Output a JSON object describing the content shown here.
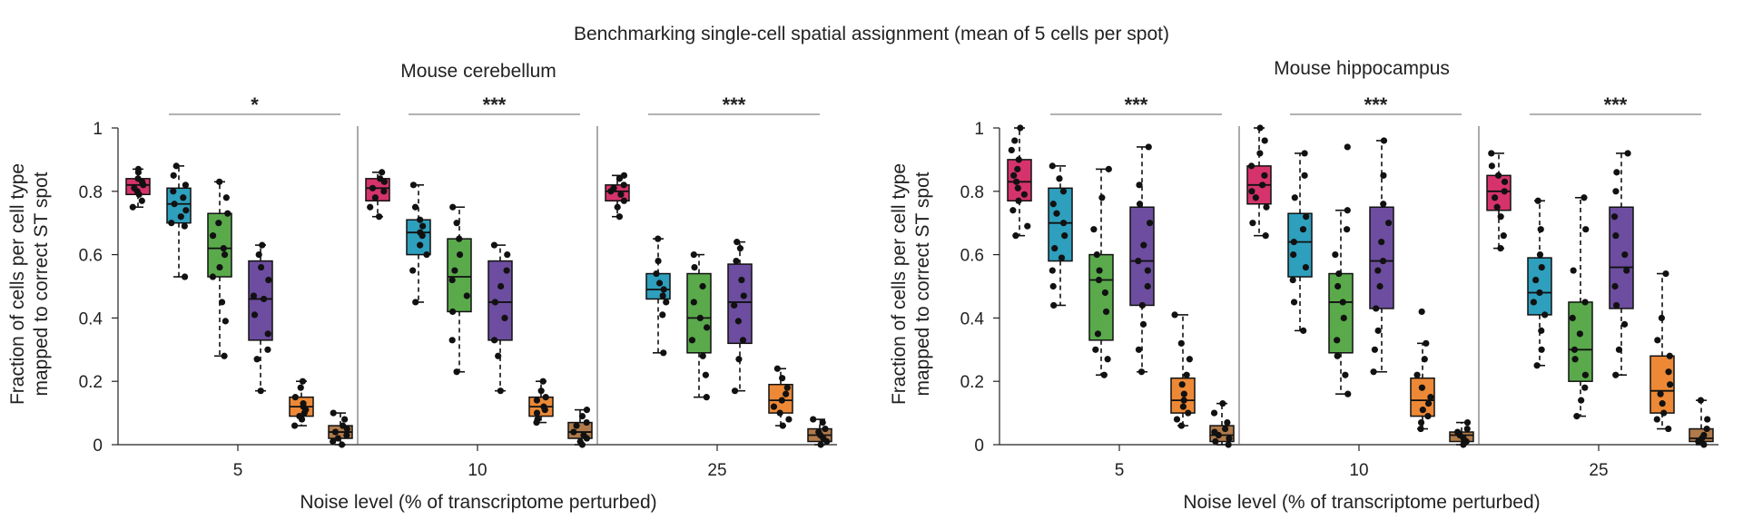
{
  "title": "Benchmarking single-cell spatial assignment (mean of 5 cells per spot)",
  "colors": {
    "method_1": "#d6336c",
    "method_2": "#2e9fbd",
    "method_3": "#5aaa4c",
    "method_4": "#6d4d9f",
    "method_5": "#ed8936",
    "method_6": "#b07a4a",
    "sig_line": "#999999",
    "axis": "#222222"
  },
  "chart_data": [
    {
      "type": "box",
      "title": "Mouse cerebellum",
      "ylabel_lines": [
        "Fraction of cells per cell type",
        "mapped to correct ST spot"
      ],
      "xlabel": "Noise level (% of transcriptome perturbed)",
      "ylim": [
        0,
        1
      ],
      "yticks": [
        0,
        0.2,
        0.4,
        0.6,
        0.8,
        1
      ],
      "ytick_labels": [
        "0",
        "0.2",
        "0.4",
        "0.6",
        "0.8",
        "1"
      ],
      "groups": [
        {
          "label": "5",
          "significance": "*",
          "boxes": [
            {
              "color_key": "method_1",
              "q1": 0.79,
              "median": 0.82,
              "q3": 0.84,
              "whisker_low": 0.75,
              "whisker_high": 0.87,
              "points": [
                0.75,
                0.77,
                0.79,
                0.8,
                0.81,
                0.82,
                0.83,
                0.84,
                0.86,
                0.87
              ]
            },
            {
              "color_key": "method_2",
              "q1": 0.7,
              "median": 0.76,
              "q3": 0.81,
              "whisker_low": 0.53,
              "whisker_high": 0.88,
              "points": [
                0.53,
                0.69,
                0.7,
                0.72,
                0.74,
                0.76,
                0.78,
                0.8,
                0.82,
                0.85,
                0.88
              ]
            },
            {
              "color_key": "method_3",
              "q1": 0.53,
              "median": 0.62,
              "q3": 0.73,
              "whisker_low": 0.28,
              "whisker_high": 0.83,
              "points": [
                0.28,
                0.39,
                0.45,
                0.53,
                0.56,
                0.6,
                0.62,
                0.66,
                0.7,
                0.73,
                0.78,
                0.83
              ]
            },
            {
              "color_key": "method_4",
              "q1": 0.33,
              "median": 0.46,
              "q3": 0.58,
              "whisker_low": 0.17,
              "whisker_high": 0.63,
              "points": [
                0.17,
                0.27,
                0.3,
                0.35,
                0.41,
                0.46,
                0.47,
                0.52,
                0.56,
                0.6,
                0.63
              ]
            },
            {
              "color_key": "method_5",
              "q1": 0.09,
              "median": 0.12,
              "q3": 0.15,
              "whisker_low": 0.06,
              "whisker_high": 0.2,
              "points": [
                0.06,
                0.08,
                0.09,
                0.1,
                0.11,
                0.12,
                0.13,
                0.15,
                0.18,
                0.2
              ]
            },
            {
              "color_key": "method_6",
              "q1": 0.02,
              "median": 0.04,
              "q3": 0.06,
              "whisker_low": 0.0,
              "whisker_high": 0.1,
              "points": [
                0.0,
                0.01,
                0.02,
                0.03,
                0.04,
                0.05,
                0.06,
                0.08,
                0.1
              ]
            }
          ]
        },
        {
          "label": "10",
          "significance": "***",
          "boxes": [
            {
              "color_key": "method_1",
              "q1": 0.77,
              "median": 0.81,
              "q3": 0.84,
              "whisker_low": 0.72,
              "whisker_high": 0.86,
              "points": [
                0.72,
                0.75,
                0.78,
                0.8,
                0.81,
                0.83,
                0.84,
                0.86
              ]
            },
            {
              "color_key": "method_2",
              "q1": 0.6,
              "median": 0.67,
              "q3": 0.71,
              "whisker_low": 0.45,
              "whisker_high": 0.82,
              "points": [
                0.45,
                0.55,
                0.6,
                0.63,
                0.66,
                0.67,
                0.69,
                0.71,
                0.75,
                0.82
              ]
            },
            {
              "color_key": "method_3",
              "q1": 0.42,
              "median": 0.53,
              "q3": 0.65,
              "whisker_low": 0.23,
              "whisker_high": 0.75,
              "points": [
                0.23,
                0.33,
                0.42,
                0.47,
                0.52,
                0.55,
                0.6,
                0.65,
                0.7,
                0.75
              ]
            },
            {
              "color_key": "method_4",
              "q1": 0.33,
              "median": 0.45,
              "q3": 0.58,
              "whisker_low": 0.17,
              "whisker_high": 0.63,
              "points": [
                0.17,
                0.28,
                0.33,
                0.4,
                0.45,
                0.5,
                0.55,
                0.6,
                0.63
              ]
            },
            {
              "color_key": "method_5",
              "q1": 0.09,
              "median": 0.12,
              "q3": 0.15,
              "whisker_low": 0.07,
              "whisker_high": 0.2,
              "points": [
                0.07,
                0.08,
                0.1,
                0.11,
                0.12,
                0.14,
                0.15,
                0.17,
                0.2
              ]
            },
            {
              "color_key": "method_6",
              "q1": 0.02,
              "median": 0.04,
              "q3": 0.07,
              "whisker_low": 0.0,
              "whisker_high": 0.11,
              "points": [
                0.0,
                0.01,
                0.02,
                0.03,
                0.04,
                0.06,
                0.07,
                0.09,
                0.11
              ]
            }
          ]
        },
        {
          "label": "25",
          "significance": "***",
          "boxes": [
            {
              "color_key": "method_1",
              "q1": 0.77,
              "median": 0.8,
              "q3": 0.82,
              "whisker_low": 0.72,
              "whisker_high": 0.85,
              "points": [
                0.72,
                0.75,
                0.77,
                0.79,
                0.8,
                0.81,
                0.82,
                0.84,
                0.85
              ]
            },
            {
              "color_key": "method_2",
              "q1": 0.46,
              "median": 0.49,
              "q3": 0.54,
              "whisker_low": 0.29,
              "whisker_high": 0.65,
              "points": [
                0.29,
                0.41,
                0.45,
                0.47,
                0.49,
                0.51,
                0.54,
                0.58,
                0.65
              ]
            },
            {
              "color_key": "method_3",
              "q1": 0.29,
              "median": 0.4,
              "q3": 0.54,
              "whisker_low": 0.15,
              "whisker_high": 0.6,
              "points": [
                0.15,
                0.22,
                0.28,
                0.33,
                0.37,
                0.4,
                0.45,
                0.5,
                0.56,
                0.6
              ]
            },
            {
              "color_key": "method_4",
              "q1": 0.32,
              "median": 0.45,
              "q3": 0.57,
              "whisker_low": 0.17,
              "whisker_high": 0.64,
              "points": [
                0.17,
                0.27,
                0.33,
                0.39,
                0.44,
                0.47,
                0.52,
                0.58,
                0.62,
                0.64
              ]
            },
            {
              "color_key": "method_5",
              "q1": 0.1,
              "median": 0.14,
              "q3": 0.19,
              "whisker_low": 0.06,
              "whisker_high": 0.24,
              "points": [
                0.06,
                0.08,
                0.1,
                0.12,
                0.14,
                0.16,
                0.18,
                0.21,
                0.24
              ]
            },
            {
              "color_key": "method_6",
              "q1": 0.01,
              "median": 0.03,
              "q3": 0.05,
              "whisker_low": 0.0,
              "whisker_high": 0.08,
              "points": [
                0.0,
                0.01,
                0.02,
                0.03,
                0.04,
                0.05,
                0.07,
                0.08
              ]
            }
          ]
        }
      ]
    },
    {
      "type": "box",
      "title": "Mouse hippocampus",
      "ylabel_lines": [
        "Fraction of cells per cell type",
        "mapped to correct ST spot"
      ],
      "xlabel": "Noise level (% of transcriptome perturbed)",
      "ylim": [
        0,
        1
      ],
      "yticks": [
        0,
        0.2,
        0.4,
        0.6,
        0.8,
        1
      ],
      "ytick_labels": [
        "0",
        "0.2",
        "0.4",
        "0.6",
        "0.8",
        "1"
      ],
      "groups": [
        {
          "label": "5",
          "significance": "***",
          "boxes": [
            {
              "color_key": "method_1",
              "q1": 0.77,
              "median": 0.83,
              "q3": 0.9,
              "whisker_low": 0.66,
              "whisker_high": 1.0,
              "points": [
                0.66,
                0.69,
                0.74,
                0.77,
                0.79,
                0.81,
                0.83,
                0.85,
                0.87,
                0.9,
                0.93,
                0.96,
                1.0
              ]
            },
            {
              "color_key": "method_2",
              "q1": 0.58,
              "median": 0.7,
              "q3": 0.81,
              "whisker_low": 0.44,
              "whisker_high": 0.88,
              "points": [
                0.44,
                0.5,
                0.55,
                0.59,
                0.62,
                0.66,
                0.7,
                0.73,
                0.76,
                0.8,
                0.84,
                0.88
              ]
            },
            {
              "color_key": "method_3",
              "q1": 0.33,
              "median": 0.52,
              "q3": 0.6,
              "whisker_low": 0.22,
              "whisker_high": 0.87,
              "points": [
                0.22,
                0.27,
                0.3,
                0.35,
                0.42,
                0.48,
                0.52,
                0.55,
                0.6,
                0.68,
                0.78,
                0.87
              ]
            },
            {
              "color_key": "method_4",
              "q1": 0.44,
              "median": 0.58,
              "q3": 0.75,
              "whisker_low": 0.23,
              "whisker_high": 0.94,
              "points": [
                0.23,
                0.3,
                0.38,
                0.44,
                0.5,
                0.55,
                0.58,
                0.63,
                0.7,
                0.76,
                0.82,
                0.94
              ]
            },
            {
              "color_key": "method_5",
              "q1": 0.1,
              "median": 0.14,
              "q3": 0.21,
              "whisker_low": 0.06,
              "whisker_high": 0.41,
              "points": [
                0.06,
                0.08,
                0.1,
                0.12,
                0.14,
                0.16,
                0.19,
                0.22,
                0.27,
                0.32,
                0.41
              ]
            },
            {
              "color_key": "method_6",
              "q1": 0.01,
              "median": 0.03,
              "q3": 0.06,
              "whisker_low": 0.0,
              "whisker_high": 0.13,
              "points": [
                0.0,
                0.01,
                0.02,
                0.03,
                0.04,
                0.05,
                0.07,
                0.1,
                0.13
              ]
            }
          ]
        },
        {
          "label": "10",
          "significance": "***",
          "boxes": [
            {
              "color_key": "method_1",
              "q1": 0.76,
              "median": 0.82,
              "q3": 0.88,
              "whisker_low": 0.66,
              "whisker_high": 1.0,
              "points": [
                0.66,
                0.7,
                0.75,
                0.78,
                0.8,
                0.82,
                0.85,
                0.88,
                0.92,
                0.96,
                1.0
              ]
            },
            {
              "color_key": "method_2",
              "q1": 0.53,
              "median": 0.64,
              "q3": 0.73,
              "whisker_low": 0.36,
              "whisker_high": 0.92,
              "points": [
                0.36,
                0.45,
                0.52,
                0.56,
                0.6,
                0.64,
                0.68,
                0.72,
                0.78,
                0.85,
                0.92
              ]
            },
            {
              "color_key": "method_3",
              "q1": 0.29,
              "median": 0.45,
              "q3": 0.54,
              "whisker_low": 0.16,
              "whisker_high": 0.74,
              "points": [
                0.16,
                0.22,
                0.28,
                0.33,
                0.4,
                0.45,
                0.5,
                0.54,
                0.6,
                0.68,
                0.74,
                0.94
              ]
            },
            {
              "color_key": "method_4",
              "q1": 0.43,
              "median": 0.58,
              "q3": 0.75,
              "whisker_low": 0.23,
              "whisker_high": 0.96,
              "points": [
                0.23,
                0.3,
                0.36,
                0.43,
                0.5,
                0.55,
                0.58,
                0.64,
                0.7,
                0.76,
                0.85,
                0.96
              ]
            },
            {
              "color_key": "method_5",
              "q1": 0.09,
              "median": 0.14,
              "q3": 0.21,
              "whisker_low": 0.05,
              "whisker_high": 0.32,
              "points": [
                0.05,
                0.07,
                0.09,
                0.11,
                0.13,
                0.15,
                0.18,
                0.22,
                0.27,
                0.32,
                0.42
              ]
            },
            {
              "color_key": "method_6",
              "q1": 0.01,
              "median": 0.03,
              "q3": 0.04,
              "whisker_low": 0.0,
              "whisker_high": 0.07,
              "points": [
                0.0,
                0.01,
                0.02,
                0.03,
                0.04,
                0.05,
                0.07
              ]
            }
          ]
        },
        {
          "label": "25",
          "significance": "***",
          "boxes": [
            {
              "color_key": "method_1",
              "q1": 0.74,
              "median": 0.8,
              "q3": 0.85,
              "whisker_low": 0.62,
              "whisker_high": 0.92,
              "points": [
                0.62,
                0.66,
                0.72,
                0.75,
                0.78,
                0.8,
                0.83,
                0.85,
                0.88,
                0.92
              ]
            },
            {
              "color_key": "method_2",
              "q1": 0.41,
              "median": 0.48,
              "q3": 0.59,
              "whisker_low": 0.25,
              "whisker_high": 0.77,
              "points": [
                0.25,
                0.3,
                0.36,
                0.41,
                0.45,
                0.48,
                0.52,
                0.56,
                0.6,
                0.68,
                0.77
              ]
            },
            {
              "color_key": "method_3",
              "q1": 0.2,
              "median": 0.3,
              "q3": 0.45,
              "whisker_low": 0.09,
              "whisker_high": 0.78,
              "points": [
                0.09,
                0.14,
                0.18,
                0.22,
                0.27,
                0.3,
                0.35,
                0.4,
                0.45,
                0.55,
                0.68,
                0.78
              ]
            },
            {
              "color_key": "method_4",
              "q1": 0.43,
              "median": 0.56,
              "q3": 0.75,
              "whisker_low": 0.22,
              "whisker_high": 0.92,
              "points": [
                0.22,
                0.3,
                0.38,
                0.44,
                0.5,
                0.55,
                0.6,
                0.66,
                0.72,
                0.8,
                0.86,
                0.92
              ]
            },
            {
              "color_key": "method_5",
              "q1": 0.1,
              "median": 0.17,
              "q3": 0.28,
              "whisker_low": 0.05,
              "whisker_high": 0.54,
              "points": [
                0.05,
                0.08,
                0.1,
                0.13,
                0.16,
                0.19,
                0.23,
                0.28,
                0.33,
                0.4,
                0.54
              ]
            },
            {
              "color_key": "method_6",
              "q1": 0.01,
              "median": 0.02,
              "q3": 0.05,
              "whisker_low": 0.0,
              "whisker_high": 0.14,
              "points": [
                0.0,
                0.01,
                0.02,
                0.03,
                0.05,
                0.08,
                0.14
              ]
            }
          ]
        }
      ]
    }
  ]
}
